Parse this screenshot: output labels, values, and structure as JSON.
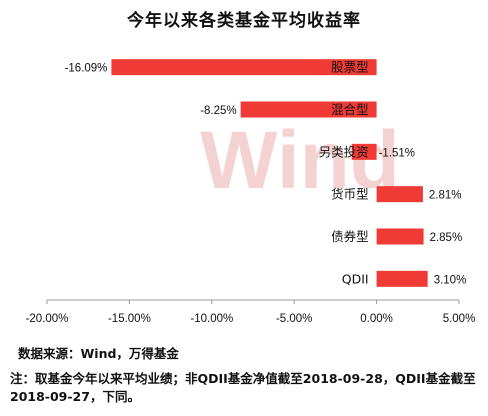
{
  "colors": {
    "bar": "#f03a36",
    "axis": "#999999",
    "watermark": "#f2c4c4"
  },
  "watermark_text": "Wind",
  "source": "数据来源：Wind，万得基金",
  "footnote": "注：取基金今年以来平均业绩；非QDII基金净值截至2018-09-28，QDII基金截至2018-09-27，下同。",
  "chart_data": {
    "type": "bar",
    "orientation": "horizontal",
    "title": "今年以来各类基金平均收益率",
    "categories": [
      "股票型",
      "混合型",
      "另类投资",
      "货币型",
      "债券型",
      "QDII"
    ],
    "values": [
      -16.09,
      -8.25,
      -1.51,
      2.81,
      2.85,
      3.1
    ],
    "value_labels": [
      "-16.09%",
      "-8.25%",
      "-1.51%",
      "2.81%",
      "2.85%",
      "3.10%"
    ],
    "xlim": [
      -20,
      5
    ],
    "xticks": [
      -20,
      -15,
      -10,
      -5,
      0,
      5
    ],
    "xtick_labels": [
      "-20.00%",
      "-15.00%",
      "-10.00%",
      "-5.00%",
      "0.00%",
      "5.00%"
    ],
    "xlabel": "",
    "ylabel": "",
    "grid": false,
    "legend": "none"
  }
}
